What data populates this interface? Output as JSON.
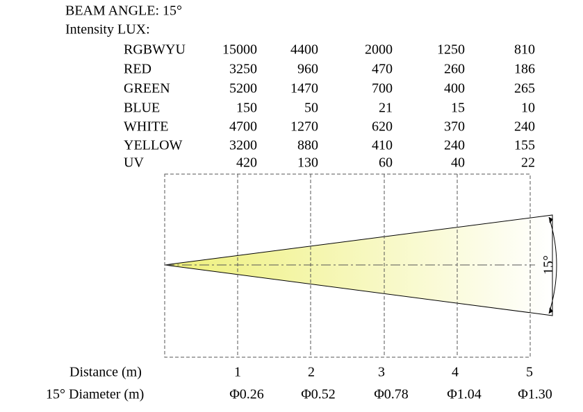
{
  "header": {
    "beam_angle": "BEAM ANGLE: 15°",
    "intensity": "Intensity LUX:"
  },
  "table": {
    "rows": [
      [
        "RGBWYU",
        15000,
        4400,
        2000,
        1250,
        810
      ],
      [
        "RED",
        3250,
        960,
        470,
        260,
        186
      ],
      [
        "GREEN",
        5200,
        1470,
        700,
        400,
        265
      ],
      [
        "BLUE",
        150,
        50,
        21,
        15,
        10
      ],
      [
        "WHITE",
        4700,
        1270,
        620,
        370,
        240
      ],
      [
        "YELLOW",
        3200,
        880,
        410,
        240,
        155
      ],
      [
        "UV",
        420,
        130,
        60,
        40,
        22
      ]
    ]
  },
  "distance": {
    "label": "Distance (m)",
    "values": [
      1,
      2,
      3,
      4,
      5
    ]
  },
  "diameter": {
    "label": "15° Diameter (m)",
    "values": [
      "Φ0.26",
      "Φ0.52",
      "Φ0.78",
      "Φ1.04",
      "Φ1.30"
    ]
  },
  "angle_label": "15°"
}
